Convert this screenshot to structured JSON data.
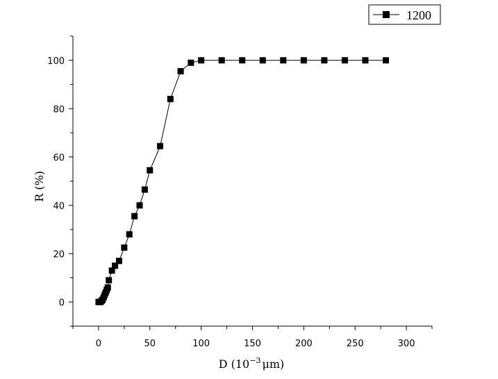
{
  "chart_data": {
    "type": "line",
    "title": "",
    "xlabel": "D (10",
    "xlabel_sup": "−3",
    "xlabel_tail": "μm)",
    "ylabel": "R (%)",
    "xlim": [
      -25,
      325
    ],
    "ylim": [
      -10,
      110
    ],
    "xticks": [
      0,
      50,
      100,
      150,
      200,
      250,
      300
    ],
    "yticks": [
      0,
      20,
      40,
      60,
      80,
      100
    ],
    "x_minor_step": 25,
    "y_minor_step": 10,
    "grid": false,
    "legend_position": "top-right",
    "marker": "square",
    "series": [
      {
        "name": "1200",
        "color": "#000000",
        "x": [
          0,
          1,
          2,
          3,
          4,
          5,
          6,
          7,
          8,
          9,
          10,
          13,
          16,
          20,
          25,
          30,
          35,
          40,
          45,
          50,
          60,
          70,
          80,
          90,
          100,
          120,
          140,
          160,
          180,
          200,
          220,
          240,
          260,
          280
        ],
        "y": [
          0,
          0,
          0,
          0.5,
          1,
          2,
          3,
          4,
          5,
          6,
          9,
          13,
          15,
          17,
          22.5,
          28,
          35.5,
          40,
          46.5,
          54.5,
          64.5,
          84,
          95.5,
          99,
          100,
          100,
          100,
          100,
          100,
          100,
          100,
          100,
          100,
          100
        ]
      }
    ]
  }
}
